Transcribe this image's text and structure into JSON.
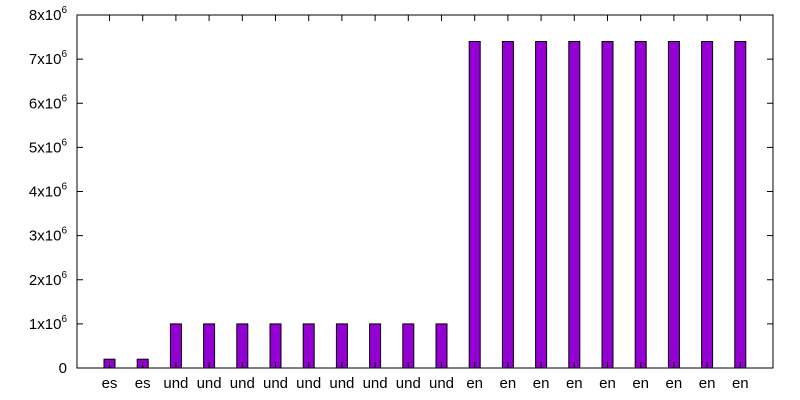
{
  "chart_data": {
    "type": "bar",
    "title": "",
    "xlabel": "",
    "ylabel": "",
    "ylim": [
      0,
      8000000
    ],
    "grid": false,
    "legend": "none",
    "colors": {
      "bar_fill": "#9400d3",
      "bar_stroke": "#000000",
      "axis": "#000000"
    },
    "yticks": [
      {
        "value": 0,
        "label": "0",
        "sup": ""
      },
      {
        "value": 1000000,
        "label": "1x10",
        "sup": "6"
      },
      {
        "value": 2000000,
        "label": "2x10",
        "sup": "6"
      },
      {
        "value": 3000000,
        "label": "3x10",
        "sup": "6"
      },
      {
        "value": 4000000,
        "label": "4x10",
        "sup": "6"
      },
      {
        "value": 5000000,
        "label": "5x10",
        "sup": "6"
      },
      {
        "value": 6000000,
        "label": "6x10",
        "sup": "6"
      },
      {
        "value": 7000000,
        "label": "7x10",
        "sup": "6"
      },
      {
        "value": 8000000,
        "label": "8x10",
        "sup": "6"
      }
    ],
    "categories": [
      "es",
      "es",
      "und",
      "und",
      "und",
      "und",
      "und",
      "und",
      "und",
      "und",
      "und",
      "en",
      "en",
      "en",
      "en",
      "en",
      "en",
      "en",
      "en",
      "en"
    ],
    "values": [
      200000,
      200000,
      1000000,
      1000000,
      1000000,
      1000000,
      1000000,
      1000000,
      1000000,
      1000000,
      1000000,
      7400000,
      7400000,
      7400000,
      7400000,
      7400000,
      7400000,
      7400000,
      7400000,
      7400000
    ]
  }
}
